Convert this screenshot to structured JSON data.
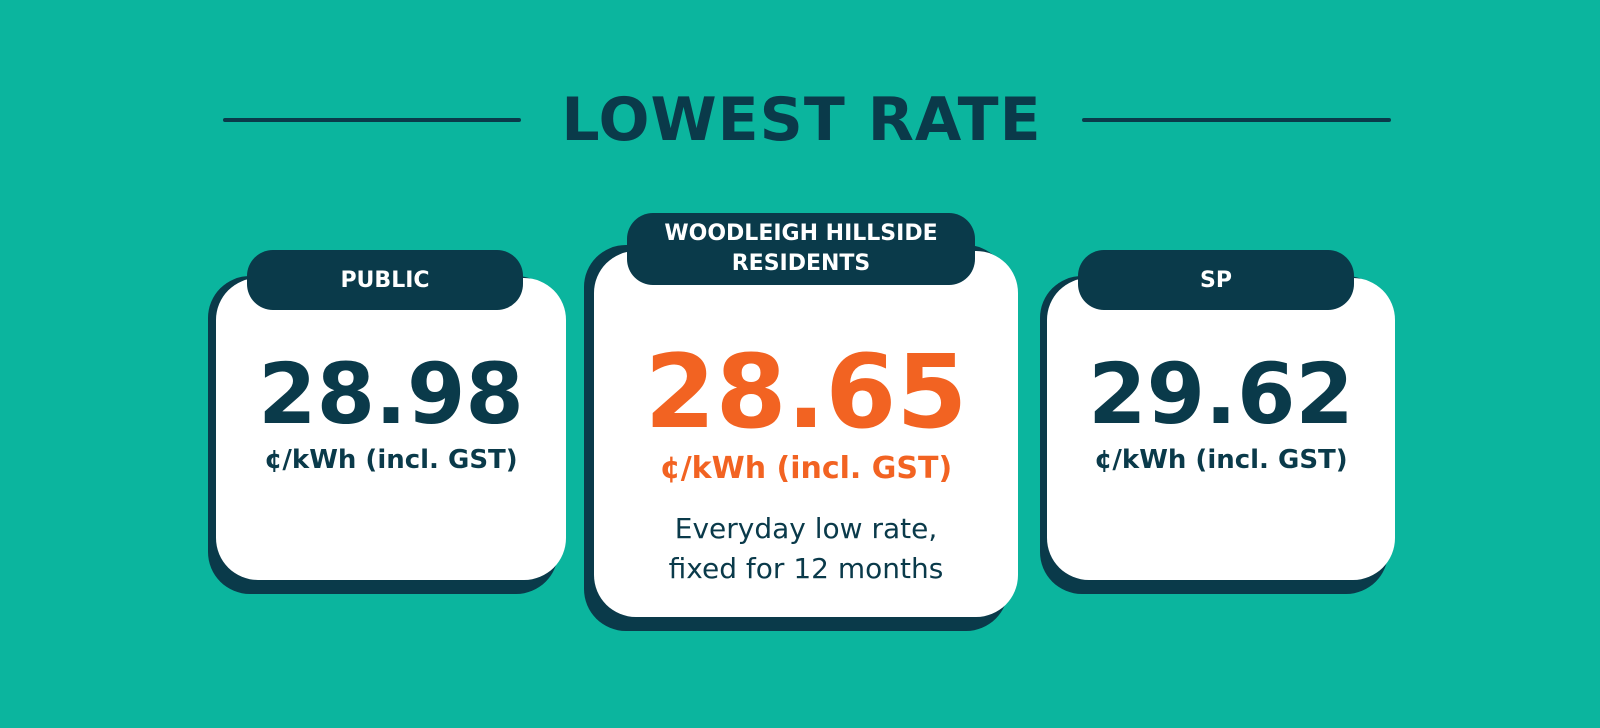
{
  "title": "LOWEST RATE",
  "colors": {
    "background": "#0bb59e",
    "navy": "#0a3a4a",
    "accent": "#f26322",
    "card": "#ffffff"
  },
  "cards": [
    {
      "label": "PUBLIC",
      "rate": "28.98",
      "unit": "¢/kWh (incl. GST)"
    },
    {
      "label": "WOODLEIGH HILLSIDE\nRESIDENTS",
      "rate": "28.65",
      "unit": "¢/kWh (incl. GST)",
      "note": "Everyday low rate,\nfixed for 12 months"
    },
    {
      "label": "SP",
      "rate": "29.62",
      "unit": "¢/kWh (incl. GST)"
    }
  ]
}
